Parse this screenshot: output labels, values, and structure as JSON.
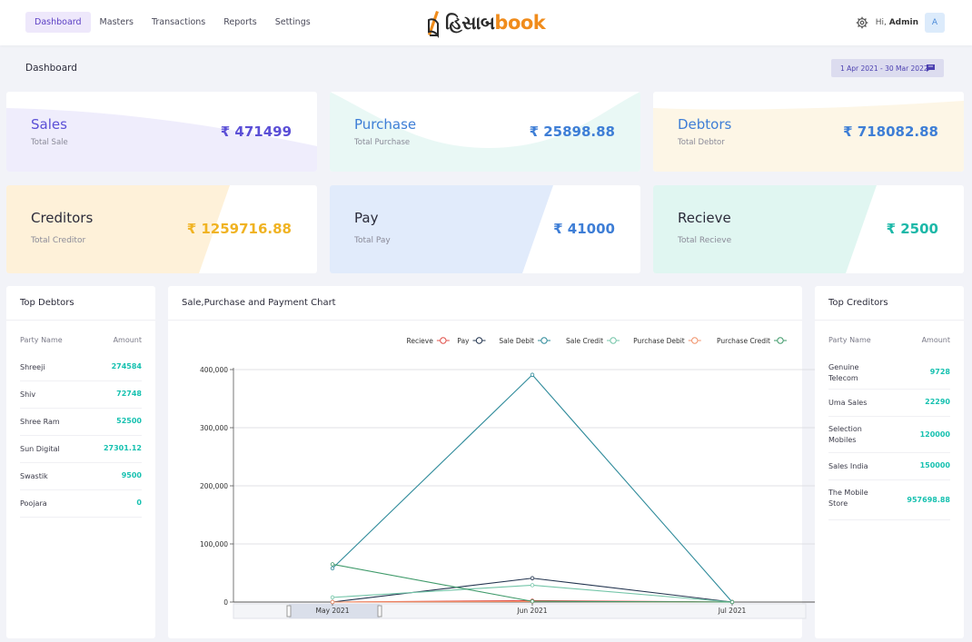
{
  "nav": {
    "items": [
      "Dashboard",
      "Masters",
      "Transactions",
      "Reports",
      "Settings"
    ],
    "active": "Dashboard"
  },
  "brand": {
    "script": "હિસાબ",
    "word": "book"
  },
  "user": {
    "greeting": "Hi,",
    "name": "Admin",
    "initial": "A"
  },
  "page": {
    "title": "Dashboard",
    "date_range": "1 Apr 2021 - 30 Mar 2022"
  },
  "cards": [
    {
      "title": "Sales",
      "subtitle": "Total Sale",
      "amount": "₹ 471499",
      "accent": "#5b4fd6",
      "bg": "#efedfc"
    },
    {
      "title": "Purchase",
      "subtitle": "Total Purchase",
      "amount": "₹ 25898.88",
      "accent": "#3e7ed6",
      "bg": "#e9f8f5"
    },
    {
      "title": "Debtors",
      "subtitle": "Total Debtor",
      "amount": "₹ 718082.88",
      "accent": "#3e7ed6",
      "bg": "#fdf6e6"
    },
    {
      "title": "Creditors",
      "subtitle": "Total Creditor",
      "amount": "₹ 1259716.88",
      "accent": "#f0b323",
      "bg": "#fef1d9"
    },
    {
      "title": "Pay",
      "subtitle": "Total Pay",
      "amount": "₹ 41000",
      "accent": "#3e7ed6",
      "bg": "#e1ebfb"
    },
    {
      "title": "Recieve",
      "subtitle": "Total Recieve",
      "amount": "₹ 2500",
      "accent": "#1cb8a8",
      "bg": "#e0f6f1"
    }
  ],
  "top_debtors": {
    "title": "Top Debtors",
    "col_name": "Party Name",
    "col_amount": "Amount",
    "rows": [
      {
        "name": "Shreeji",
        "amount": "274584"
      },
      {
        "name": "Shiv",
        "amount": "72748"
      },
      {
        "name": "Shree Ram",
        "amount": "52500"
      },
      {
        "name": "Sun Digital",
        "amount": "27301.12"
      },
      {
        "name": "Swastik",
        "amount": "9500"
      },
      {
        "name": "Poojara",
        "amount": "0"
      }
    ]
  },
  "top_creditors": {
    "title": "Top Creditors",
    "col_name": "Party Name",
    "col_amount": "Amount",
    "rows": [
      {
        "name": "Genuine Telecom",
        "amount": "9728"
      },
      {
        "name": "Uma Sales",
        "amount": "22290"
      },
      {
        "name": "Selection Mobiles",
        "amount": "120000"
      },
      {
        "name": "Sales India",
        "amount": "150000"
      },
      {
        "name": "The Mobile Store",
        "amount": "957698.88"
      }
    ]
  },
  "chart_panel": {
    "title": "Sale,Purchase and Payment Chart"
  },
  "chart_data": {
    "type": "line",
    "categories": [
      "May 2021",
      "Jun 2021",
      "Jul 2021"
    ],
    "ylim": [
      0,
      400000
    ],
    "yticks": [
      "0",
      "100,000",
      "200,000",
      "300,000",
      "400,000"
    ],
    "legend_position": "top-right",
    "grid": true,
    "series": [
      {
        "name": "Recieve",
        "color": "#e0504a",
        "values": [
          0,
          2500,
          0
        ]
      },
      {
        "name": "Pay",
        "color": "#22344f",
        "values": [
          0,
          41000,
          0
        ]
      },
      {
        "name": "Sale Debit",
        "color": "#2e8a9a",
        "values": [
          58000,
          391000,
          0
        ]
      },
      {
        "name": "Sale Credit",
        "color": "#73c5a8",
        "values": [
          8000,
          29000,
          0
        ]
      },
      {
        "name": "Purchase Debit",
        "color": "#f0926a",
        "values": [
          0,
          800,
          0
        ]
      },
      {
        "name": "Purchase Credit",
        "color": "#3f9a6a",
        "values": [
          65000,
          1200,
          0
        ]
      }
    ]
  }
}
